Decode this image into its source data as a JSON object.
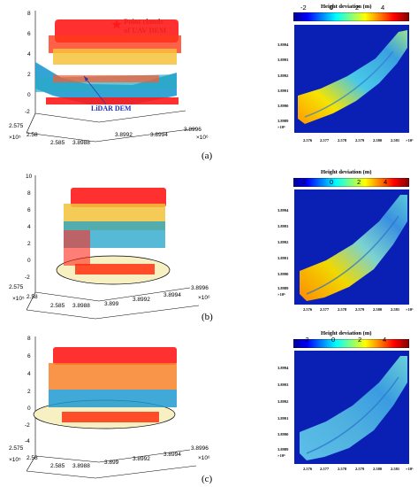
{
  "panels": [
    {
      "caption": "(a)",
      "zticks": [
        "8",
        "6",
        "4",
        "2",
        "0",
        "-2"
      ],
      "xticks": [
        "2.575",
        "2.58",
        "2.585"
      ],
      "yticks": [
        "3.8988",
        "3.899",
        "3.8992",
        "3.8994",
        "3.8996"
      ],
      "xexp": "×10⁵",
      "yexp": "×10⁶",
      "annotation_uav": "Point clouds\nof UAV DEM",
      "annotation_lidar": "LiDAR DEM"
    },
    {
      "caption": "(b)",
      "zticks": [
        "10",
        "8",
        "6",
        "4",
        "2",
        "0",
        "-2"
      ],
      "xticks": [
        "2.575",
        "2.58",
        "2.585"
      ],
      "yticks": [
        "3.8988",
        "3.899",
        "3.8992",
        "3.8994",
        "3.8996"
      ],
      "xexp": "×10⁵",
      "yexp": "×10⁶"
    },
    {
      "caption": "(c)",
      "zticks": [
        "8",
        "6",
        "4",
        "2",
        "0",
        "-2",
        "-4"
      ],
      "xticks": [
        "2.575",
        "2.58",
        "2.585"
      ],
      "yticks": [
        "3.8988",
        "3.899",
        "3.8992",
        "3.8994",
        "3.8996"
      ],
      "xexp": "×10⁵",
      "yexp": "×10⁶"
    }
  ],
  "maps": {
    "colorbar_title": "Height deviation (m)",
    "colorbar_ticks": [
      "-2",
      "0",
      "2",
      "4"
    ],
    "yticks": [
      "3.8994",
      "3.8993",
      "3.8992",
      "3.8991",
      "3.8990",
      "3.8989"
    ],
    "xticks": [
      "2.576",
      "2.577",
      "2.578",
      "2.579",
      "2.580",
      "2.581"
    ],
    "xexp": "×10⁵",
    "yexp": "×10⁶"
  },
  "colors": {
    "uav_points": "#ff1a1a",
    "lidar_surface": "#1e9ad0",
    "map_background": "#0a1fb4",
    "ellipse_fill": "#f7f0c2"
  }
}
